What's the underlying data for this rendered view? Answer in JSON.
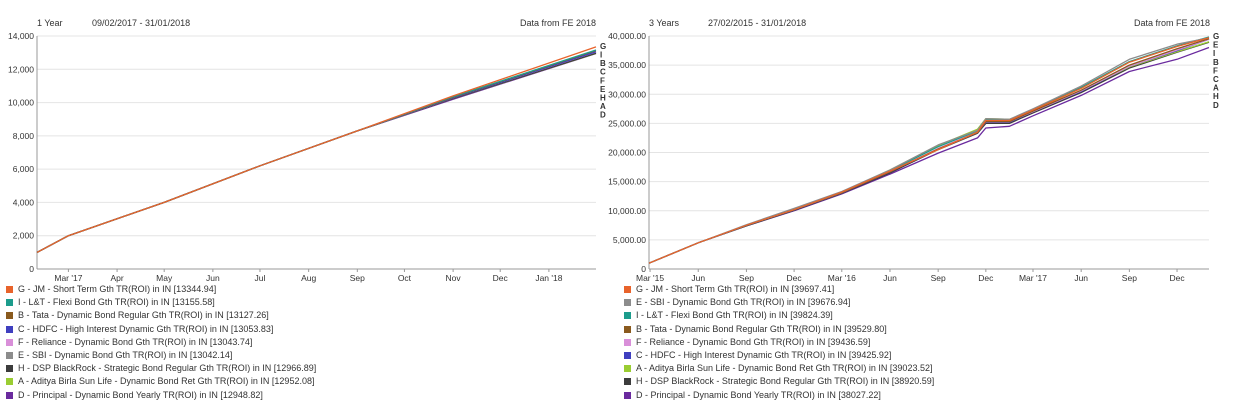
{
  "chart_data": [
    {
      "type": "line",
      "period_label": "1 Year",
      "date_range": "09/02/2017 - 31/01/2018",
      "source": "Data from FE 2018",
      "ylim": [
        0,
        14000
      ],
      "yticks": [
        "0",
        "2,000",
        "4,000",
        "6,000",
        "8,000",
        "10,000",
        "12,000",
        "14,000"
      ],
      "yticks_values": [
        0,
        2000,
        4000,
        6000,
        8000,
        10000,
        12000,
        14000
      ],
      "xticks": [
        "Mar '17",
        "Apr",
        "May",
        "Jun",
        "Jul",
        "Aug",
        "Sep",
        "Oct",
        "Nov",
        "Dec",
        "Jan '18"
      ],
      "xticks_dates": [
        "2017-03-01",
        "2017-04-01",
        "2017-05-01",
        "2017-06-01",
        "2017-07-01",
        "2017-08-01",
        "2017-09-01",
        "2017-10-01",
        "2017-11-01",
        "2017-12-01",
        "2018-01-01"
      ],
      "x_range": [
        "2017-02-09",
        "2018-01-31"
      ],
      "end_labels": [
        "G",
        "I",
        "B",
        "C",
        "F",
        "E",
        "H",
        "A",
        "D"
      ],
      "series": [
        {
          "name": "G - JM - Short Term Gth TR(ROI) in IN [13344.94]",
          "color": "#e8632b",
          "x": [
            "2017-02-09",
            "2017-03-01",
            "2017-05-01",
            "2017-07-01",
            "2017-09-01",
            "2017-11-01",
            "2018-01-31"
          ],
          "y": [
            1000,
            2000,
            4000,
            6200,
            8300,
            10400,
            13345
          ]
        },
        {
          "name": "I - L&T - Flexi Bond Gth TR(ROI) in IN [13155.58]",
          "color": "#1c9c8c",
          "x": [
            "2017-02-09",
            "2017-03-01",
            "2017-05-01",
            "2017-07-01",
            "2017-09-01",
            "2017-11-01",
            "2018-01-31"
          ],
          "y": [
            1000,
            2000,
            4000,
            6200,
            8300,
            10350,
            13156
          ]
        },
        {
          "name": "B - Tata - Dynamic Bond Regular Gth TR(ROI) in IN [13127.26]",
          "color": "#8a5a1e",
          "x": [
            "2017-02-09",
            "2017-03-01",
            "2017-05-01",
            "2017-07-01",
            "2017-09-01",
            "2017-11-01",
            "2018-01-31"
          ],
          "y": [
            1000,
            2000,
            4000,
            6200,
            8300,
            10330,
            13127
          ]
        },
        {
          "name": "C - HDFC - High Interest Dynamic Gth TR(ROI) in IN [13053.83]",
          "color": "#3f3fbf",
          "x": [
            "2017-02-09",
            "2017-03-01",
            "2017-05-01",
            "2017-07-01",
            "2017-09-01",
            "2017-11-01",
            "2018-01-31"
          ],
          "y": [
            1000,
            2000,
            4000,
            6200,
            8300,
            10300,
            13054
          ]
        },
        {
          "name": "F - Reliance - Dynamic Bond Gth TR(ROI) in IN [13043.74]",
          "color": "#d98fd9",
          "x": [
            "2017-02-09",
            "2017-03-01",
            "2017-05-01",
            "2017-07-01",
            "2017-09-01",
            "2017-11-01",
            "2018-01-31"
          ],
          "y": [
            1000,
            2000,
            4000,
            6200,
            8300,
            10300,
            13044
          ]
        },
        {
          "name": "E - SBI - Dynamic Bond Gth TR(ROI) in IN [13042.14]",
          "color": "#8c8c8c",
          "x": [
            "2017-02-09",
            "2017-03-01",
            "2017-05-01",
            "2017-07-01",
            "2017-09-01",
            "2017-11-01",
            "2018-01-31"
          ],
          "y": [
            1000,
            2000,
            4000,
            6200,
            8300,
            10300,
            13042
          ]
        },
        {
          "name": "H - DSP BlackRock - Strategic Bond Regular Gth TR(ROI) in IN [12966.89]",
          "color": "#3c3c3c",
          "x": [
            "2017-02-09",
            "2017-03-01",
            "2017-05-01",
            "2017-07-01",
            "2017-09-01",
            "2017-11-01",
            "2018-01-31"
          ],
          "y": [
            1000,
            2000,
            4000,
            6200,
            8300,
            10250,
            12967
          ]
        },
        {
          "name": "A - Aditya Birla Sun Life - Dynamic Bond Ret Gth TR(ROI) in IN [12952.08]",
          "color": "#9acd32",
          "x": [
            "2017-02-09",
            "2017-03-01",
            "2017-05-01",
            "2017-07-01",
            "2017-09-01",
            "2017-11-01",
            "2018-01-31"
          ],
          "y": [
            1000,
            2000,
            4000,
            6200,
            8300,
            10250,
            12952
          ]
        },
        {
          "name": "D - Principal - Dynamic Bond Yearly TR(ROI) in IN [12948.82]",
          "color": "#6a2a9e",
          "x": [
            "2017-02-09",
            "2017-03-01",
            "2017-05-01",
            "2017-07-01",
            "2017-09-01",
            "2017-11-01",
            "2018-01-31"
          ],
          "y": [
            1000,
            2000,
            4000,
            6200,
            8300,
            10200,
            12949
          ]
        }
      ]
    },
    {
      "type": "line",
      "period_label": "3 Years",
      "date_range": "27/02/2015 - 31/01/2018",
      "source": "Data from FE 2018",
      "ylim": [
        0,
        40000
      ],
      "yticks": [
        "0",
        "5,000.00",
        "10,000.00",
        "15,000.00",
        "20,000.00",
        "25,000.00",
        "30,000.00",
        "35,000.00",
        "40,000.00"
      ],
      "yticks_values": [
        0,
        5000,
        10000,
        15000,
        20000,
        25000,
        30000,
        35000,
        40000
      ],
      "xticks": [
        "Mar '15",
        "Jun",
        "Sep",
        "Dec",
        "Mar '16",
        "Jun",
        "Sep",
        "Dec",
        "Mar '17",
        "Jun",
        "Sep",
        "Dec"
      ],
      "xticks_dates": [
        "2015-03-01",
        "2015-06-01",
        "2015-09-01",
        "2015-12-01",
        "2016-03-01",
        "2016-06-01",
        "2016-09-01",
        "2016-12-01",
        "2017-03-01",
        "2017-06-01",
        "2017-09-01",
        "2017-12-01"
      ],
      "x_range": [
        "2015-02-27",
        "2018-01-31"
      ],
      "end_labels": [
        "G",
        "E",
        "I",
        "B",
        "F",
        "C",
        "A",
        "H",
        "D"
      ],
      "series": [
        {
          "name": "G - JM - Short Term Gth TR(ROI) in IN [39697.41]",
          "color": "#e8632b",
          "x": [
            "2015-02-27",
            "2015-06-01",
            "2015-09-01",
            "2015-12-01",
            "2016-03-01",
            "2016-06-01",
            "2016-09-01",
            "2016-11-15",
            "2016-12-01",
            "2017-01-15",
            "2017-03-01",
            "2017-06-01",
            "2017-09-01",
            "2017-12-01",
            "2018-01-31"
          ],
          "y": [
            1000,
            4500,
            7500,
            10200,
            13200,
            16800,
            20500,
            23500,
            25500,
            25500,
            27300,
            31000,
            35500,
            38200,
            39697
          ]
        },
        {
          "name": "E - SBI - Dynamic Bond Gth TR(ROI) in IN [39676.94]",
          "color": "#8c8c8c",
          "x": [
            "2015-02-27",
            "2015-06-01",
            "2015-09-01",
            "2015-12-01",
            "2016-03-01",
            "2016-06-01",
            "2016-09-01",
            "2016-11-15",
            "2016-12-01",
            "2017-01-15",
            "2017-03-01",
            "2017-06-01",
            "2017-09-01",
            "2017-12-01",
            "2018-01-31"
          ],
          "y": [
            1000,
            4500,
            7600,
            10400,
            13300,
            17000,
            21300,
            23800,
            25800,
            25700,
            27500,
            31400,
            36000,
            38600,
            39677
          ]
        },
        {
          "name": "I - L&T - Flexi Bond Gth TR(ROI) in IN [39824.39]",
          "color": "#1c9c8c",
          "x": [
            "2015-02-27",
            "2015-06-01",
            "2015-09-01",
            "2015-12-01",
            "2016-03-01",
            "2016-06-01",
            "2016-09-01",
            "2016-11-15",
            "2016-12-01",
            "2017-01-15",
            "2017-03-01",
            "2017-06-01",
            "2017-09-01",
            "2017-12-01",
            "2018-01-31"
          ],
          "y": [
            1000,
            4500,
            7500,
            10200,
            13200,
            16900,
            21000,
            23700,
            25600,
            25600,
            27400,
            31200,
            35600,
            38300,
            39824
          ]
        },
        {
          "name": "B - Tata - Dynamic Bond Regular Gth TR(ROI) in IN [39529.80]",
          "color": "#8a5a1e",
          "x": [
            "2015-02-27",
            "2015-06-01",
            "2015-09-01",
            "2015-12-01",
            "2016-03-01",
            "2016-06-01",
            "2016-09-01",
            "2016-11-15",
            "2016-12-01",
            "2017-01-15",
            "2017-03-01",
            "2017-06-01",
            "2017-09-01",
            "2017-12-01",
            "2018-01-31"
          ],
          "y": [
            1000,
            4500,
            7500,
            10200,
            13100,
            16700,
            20600,
            23400,
            25300,
            25300,
            27100,
            30700,
            35000,
            37800,
            39530
          ]
        },
        {
          "name": "F - Reliance - Dynamic Bond Gth TR(ROI) in IN [39436.59]",
          "color": "#d98fd9",
          "x": [
            "2015-02-27",
            "2015-06-01",
            "2015-09-01",
            "2015-12-01",
            "2016-03-01",
            "2016-06-01",
            "2016-09-01",
            "2016-11-15",
            "2016-12-01",
            "2017-01-15",
            "2017-03-01",
            "2017-06-01",
            "2017-09-01",
            "2017-12-01",
            "2018-01-31"
          ],
          "y": [
            1000,
            4500,
            7500,
            10200,
            13100,
            16700,
            20700,
            23500,
            25300,
            25300,
            27000,
            30600,
            34800,
            37600,
            39437
          ]
        },
        {
          "name": "C - HDFC - High Interest Dynamic Gth TR(ROI) in IN [39425.92]",
          "color": "#3f3fbf",
          "x": [
            "2015-02-27",
            "2015-06-01",
            "2015-09-01",
            "2015-12-01",
            "2016-03-01",
            "2016-06-01",
            "2016-09-01",
            "2016-11-15",
            "2016-12-01",
            "2017-01-15",
            "2017-03-01",
            "2017-06-01",
            "2017-09-01",
            "2017-12-01",
            "2018-01-31"
          ],
          "y": [
            1000,
            4500,
            7500,
            10200,
            13100,
            16700,
            20600,
            23400,
            25200,
            25200,
            27000,
            30500,
            34800,
            37500,
            39426
          ]
        },
        {
          "name": "A - Aditya Birla Sun Life - Dynamic Bond Ret Gth TR(ROI) in IN [39023.52]",
          "color": "#9acd32",
          "x": [
            "2015-02-27",
            "2015-06-01",
            "2015-09-01",
            "2015-12-01",
            "2016-03-01",
            "2016-06-01",
            "2016-09-01",
            "2016-11-15",
            "2016-12-01",
            "2017-01-15",
            "2017-03-01",
            "2017-06-01",
            "2017-09-01",
            "2017-12-01",
            "2018-01-31"
          ],
          "y": [
            1000,
            4500,
            7500,
            10200,
            13200,
            17000,
            21200,
            24000,
            25800,
            25700,
            27200,
            30600,
            34700,
            37300,
            39024
          ]
        },
        {
          "name": "H - DSP BlackRock - Strategic Bond Regular Gth TR(ROI) in IN [38920.59]",
          "color": "#3c3c3c",
          "x": [
            "2015-02-27",
            "2015-06-01",
            "2015-09-01",
            "2015-12-01",
            "2016-03-01",
            "2016-06-01",
            "2016-09-01",
            "2016-11-15",
            "2016-12-01",
            "2017-01-15",
            "2017-03-01",
            "2017-06-01",
            "2017-09-01",
            "2017-12-01",
            "2018-01-31"
          ],
          "y": [
            1000,
            4500,
            7400,
            10100,
            13000,
            16500,
            20500,
            23300,
            25000,
            25000,
            26800,
            30300,
            34500,
            37200,
            38921
          ]
        },
        {
          "name": "D - Principal - Dynamic Bond Yearly TR(ROI) in IN [38027.22]",
          "color": "#6a2a9e",
          "x": [
            "2015-02-27",
            "2015-06-01",
            "2015-09-01",
            "2015-12-01",
            "2016-03-01",
            "2016-06-01",
            "2016-09-01",
            "2016-11-15",
            "2016-12-01",
            "2017-01-15",
            "2017-03-01",
            "2017-06-01",
            "2017-09-01",
            "2017-12-01",
            "2018-01-31"
          ],
          "y": [
            1000,
            4500,
            7400,
            10000,
            12900,
            16300,
            19900,
            22500,
            24200,
            24500,
            26300,
            29800,
            33900,
            36000,
            38027
          ]
        }
      ]
    }
  ]
}
